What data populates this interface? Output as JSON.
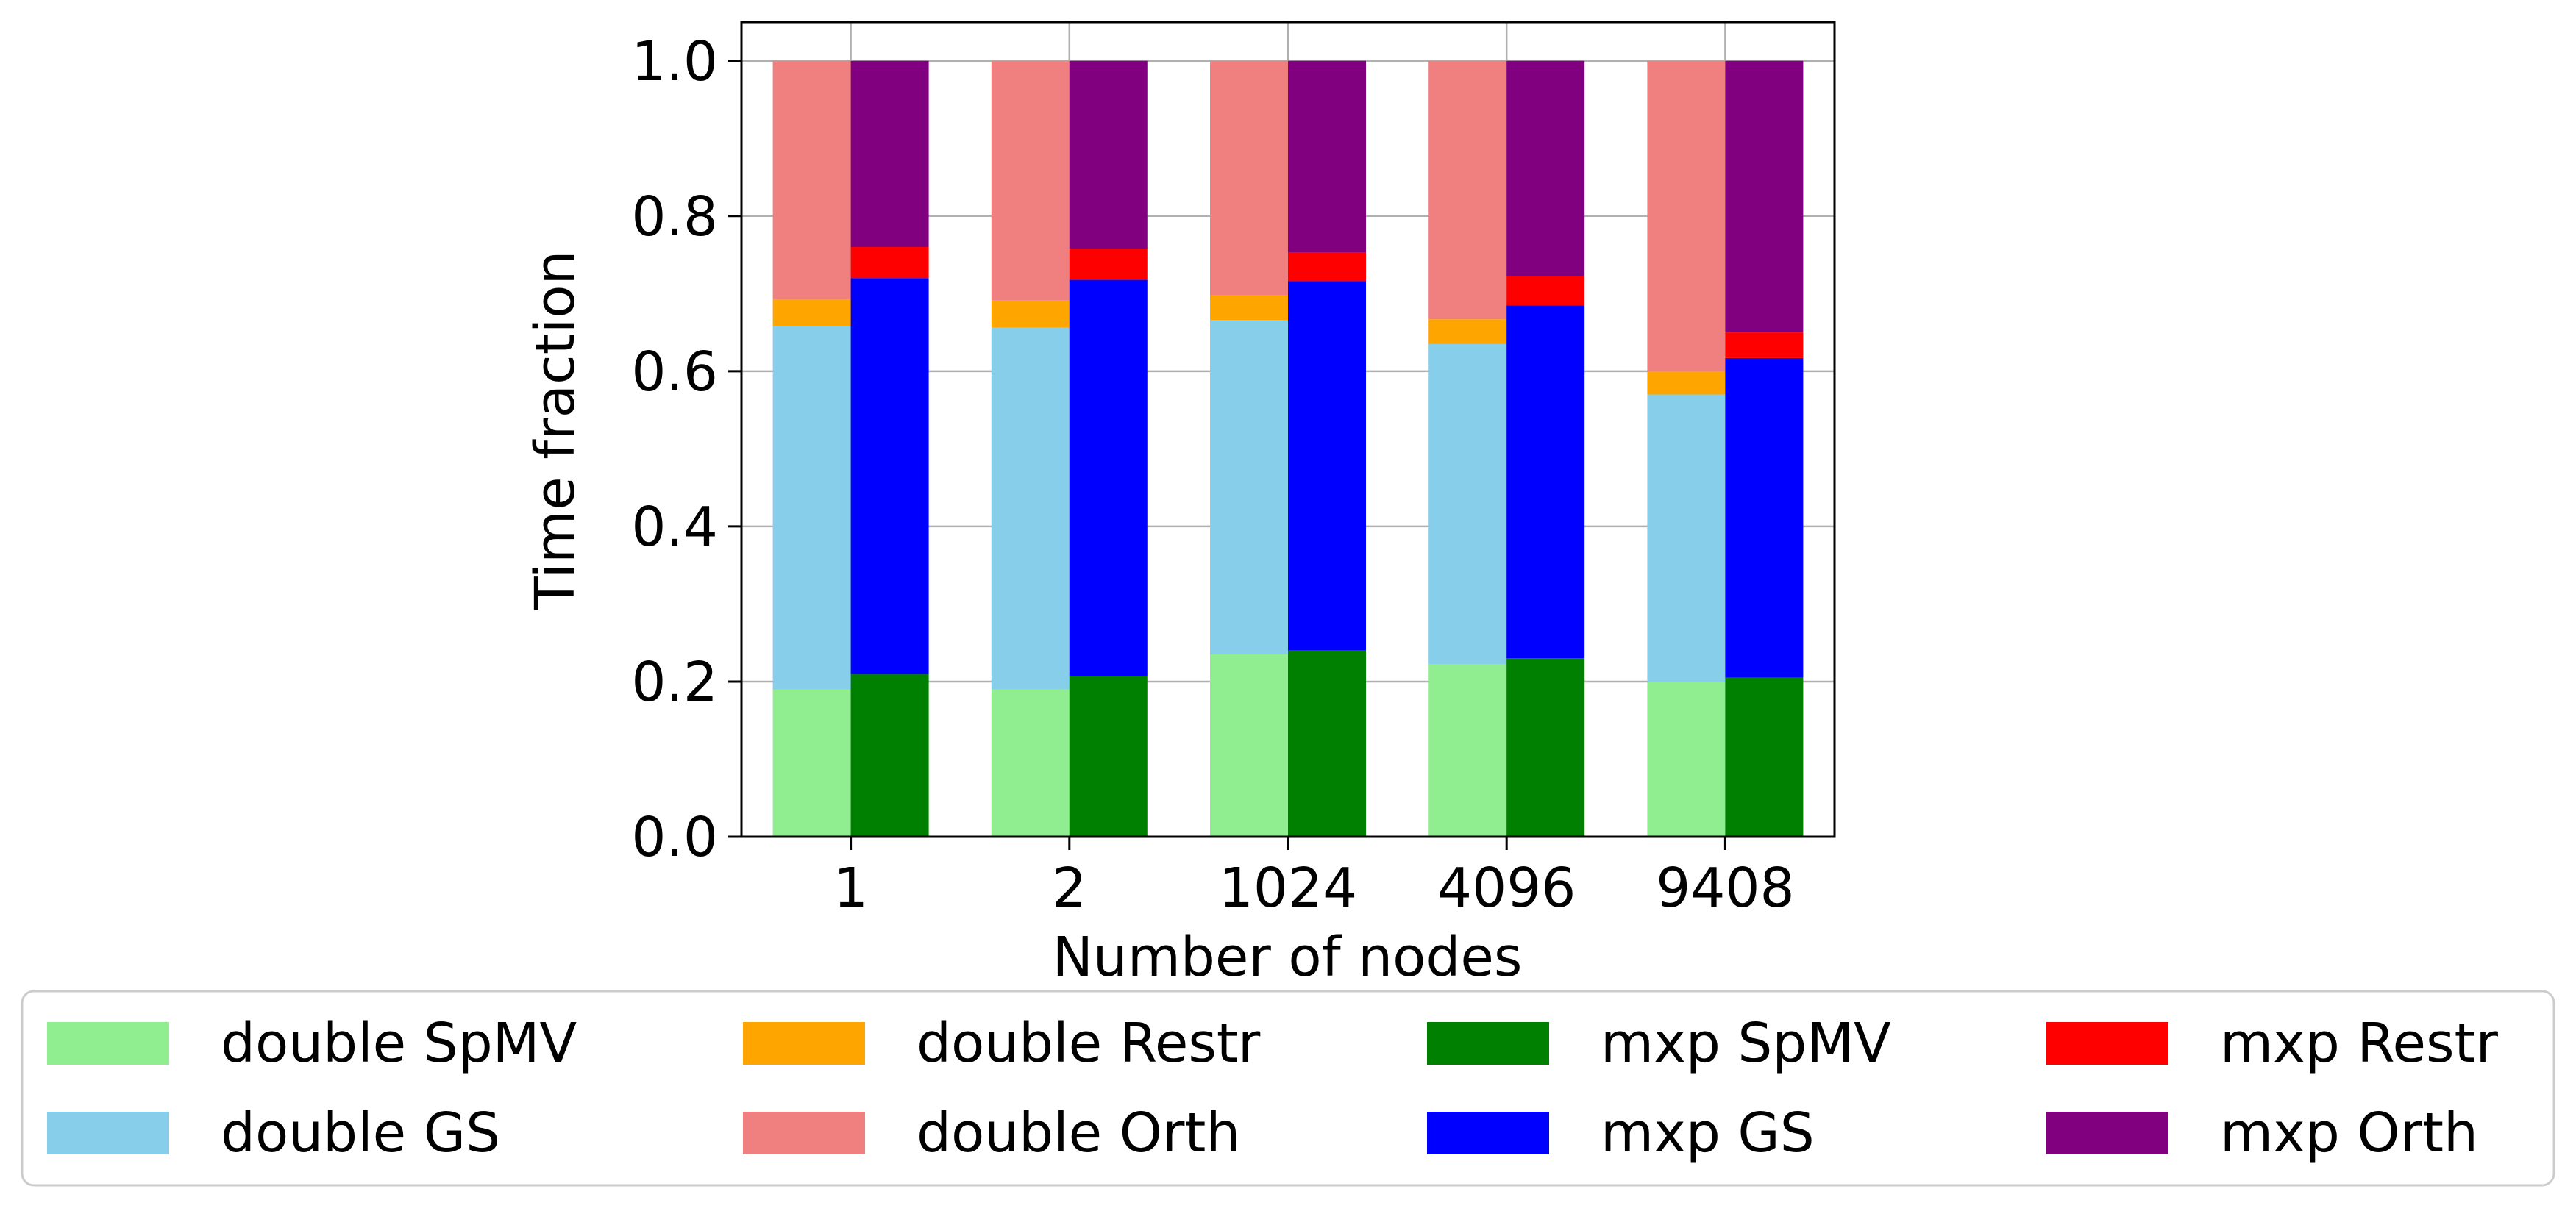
{
  "chart_data": {
    "type": "bar",
    "stacked": true,
    "grouped": true,
    "xlabel": "Number of nodes",
    "ylabel": "Time fraction",
    "ylim": [
      0,
      1.05
    ],
    "yticks": [
      "0.0",
      "0.2",
      "0.4",
      "0.6",
      "0.8",
      "1.0"
    ],
    "categories": [
      "1",
      "2",
      "1024",
      "4096",
      "9408"
    ],
    "grid": true,
    "legend_placement": "bottom",
    "groups": [
      {
        "name": "double",
        "series": [
          {
            "name": "double SpMV",
            "color": "#90ee90",
            "values": [
              0.19,
              0.19,
              0.235,
              0.222,
              0.2
            ]
          },
          {
            "name": "double GS",
            "color": "#87ceeb",
            "values": [
              0.468,
              0.466,
              0.431,
              0.413,
              0.37
            ]
          },
          {
            "name": "double Restr",
            "color": "#ffa500",
            "values": [
              0.035,
              0.035,
              0.032,
              0.032,
              0.03
            ]
          },
          {
            "name": "double Orth",
            "color": "#f08080",
            "values": [
              0.307,
              0.309,
              0.302,
              0.333,
              0.4
            ]
          }
        ]
      },
      {
        "name": "mxp",
        "series": [
          {
            "name": "mxp SpMV",
            "color": "#008000",
            "values": [
              0.21,
              0.207,
              0.24,
              0.23,
              0.205
            ]
          },
          {
            "name": "mxp GS",
            "color": "#0000ff",
            "values": [
              0.51,
              0.511,
              0.476,
              0.455,
              0.412
            ]
          },
          {
            "name": "mxp Restr",
            "color": "#ff0000",
            "values": [
              0.04,
              0.04,
              0.037,
              0.038,
              0.033
            ]
          },
          {
            "name": "mxp Orth",
            "color": "#800080",
            "values": [
              0.24,
              0.242,
              0.247,
              0.277,
              0.35
            ]
          }
        ]
      }
    ],
    "legend": [
      "double SpMV",
      "double Restr",
      "mxp SpMV",
      "mxp Restr",
      "double GS",
      "double Orth",
      "mxp GS",
      "mxp Orth"
    ]
  }
}
